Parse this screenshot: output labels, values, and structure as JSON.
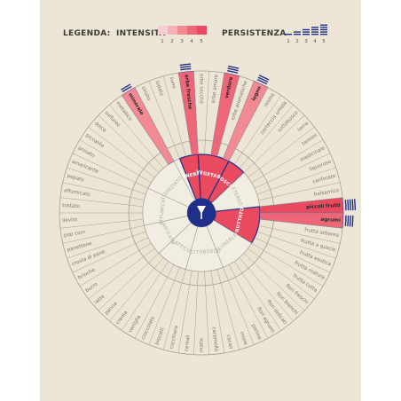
{
  "legend": {
    "title": "LEGENDA:",
    "intensity_label": "INTENSITÀ",
    "persistence_label": "PERSISTENZA",
    "scale": [
      "1",
      "2",
      "3",
      "4",
      "5"
    ]
  },
  "colors": {
    "background": "#ede6d7",
    "navy": "#1f2f8c",
    "pink1": "#f7cfd2",
    "pink2": "#f6b0b6",
    "pink3": "#f38a93",
    "pink4": "#ee6677",
    "pink5": "#e94a5f",
    "line": "#a59e92",
    "text": "#7c766b"
  },
  "categories": [
    {
      "name": "MINERALE",
      "active": true
    },
    {
      "name": "VEGETALE",
      "active": true
    },
    {
      "name": "BOSCO",
      "active": true
    },
    {
      "name": "ETEREO",
      "active": false
    },
    {
      "name": "FRUTTATO",
      "active": true
    },
    {
      "name": "FLOREALE",
      "active": false
    },
    {
      "name": "SOTTOBOSCO",
      "active": false
    },
    {
      "name": "LATTICO",
      "active": false
    },
    {
      "name": "PANIFICATO",
      "active": false
    },
    {
      "name": "AFFUMICATO",
      "active": false
    },
    {
      "name": "SPEZIATO",
      "active": false
    }
  ],
  "descriptors": [
    {
      "name": "iodato",
      "intensity": 0,
      "persistence": 0
    },
    {
      "name": "sumi",
      "intensity": 0,
      "persistence": 0
    },
    {
      "name": "erbe fresche",
      "intensity": 4,
      "persistence": 3
    },
    {
      "name": "erbe secche",
      "intensity": 0,
      "persistence": 0
    },
    {
      "name": "erbe amare",
      "intensity": 0,
      "persistence": 0
    },
    {
      "name": "verdure",
      "intensity": 4,
      "persistence": 3
    },
    {
      "name": "erbe aromatiche",
      "intensity": 0,
      "persistence": 0
    },
    {
      "name": "legno",
      "intensity": 3,
      "persistence": 3
    },
    {
      "name": "resina",
      "intensity": 0,
      "persistence": 0
    },
    {
      "name": "corteccia umida",
      "intensity": 0,
      "persistence": 0
    },
    {
      "name": "sottobosco",
      "intensity": 0,
      "persistence": 0
    },
    {
      "name": "terra",
      "intensity": 0,
      "persistence": 0
    },
    {
      "name": "tannini",
      "intensity": 0,
      "persistence": 0
    },
    {
      "name": "medicinale",
      "intensity": 0,
      "persistence": 0
    },
    {
      "name": "liquoroso",
      "intensity": 0,
      "persistence": 0
    },
    {
      "name": "canforato",
      "intensity": 0,
      "persistence": 0
    },
    {
      "name": "balsamico",
      "intensity": 0,
      "persistence": 0
    },
    {
      "name": "piccoli frutti",
      "intensity": 5,
      "persistence": 5
    },
    {
      "name": "agrumi",
      "intensity": 4,
      "persistence": 4
    },
    {
      "name": "frutta arborea",
      "intensity": 0,
      "persistence": 0
    },
    {
      "name": "frutta a guscio",
      "intensity": 0,
      "persistence": 0
    },
    {
      "name": "frutta esotica",
      "intensity": 0,
      "persistence": 0
    },
    {
      "name": "frutta matura",
      "intensity": 0,
      "persistence": 0
    },
    {
      "name": "frutta cotta",
      "intensity": 0,
      "persistence": 0
    },
    {
      "name": "fiori freschi",
      "intensity": 0,
      "persistence": 0
    },
    {
      "name": "fiori bianchi",
      "intensity": 0,
      "persistence": 0
    },
    {
      "name": "fiori delicati",
      "intensity": 0,
      "persistence": 0
    },
    {
      "name": "fiori agrumi",
      "intensity": 0,
      "persistence": 0
    },
    {
      "name": "polline",
      "intensity": 0,
      "persistence": 0
    },
    {
      "name": "miele",
      "intensity": 0,
      "persistence": 0
    },
    {
      "name": "cacao",
      "intensity": 0,
      "persistence": 0
    },
    {
      "name": "caramello",
      "intensity": 0,
      "persistence": 0
    },
    {
      "name": "malto",
      "intensity": 0,
      "persistence": 0
    },
    {
      "name": "cereali",
      "intensity": 0,
      "persistence": 0
    },
    {
      "name": "cocchiera",
      "intensity": 0,
      "persistence": 0
    },
    {
      "name": "biscotti",
      "intensity": 0,
      "persistence": 0
    },
    {
      "name": "cioccolato",
      "intensity": 0,
      "persistence": 0
    },
    {
      "name": "vaniglia",
      "intensity": 0,
      "persistence": 0
    },
    {
      "name": "crema",
      "intensity": 0,
      "persistence": 0
    },
    {
      "name": "panna",
      "intensity": 0,
      "persistence": 0
    },
    {
      "name": "latte",
      "intensity": 0,
      "persistence": 0
    },
    {
      "name": "burro",
      "intensity": 0,
      "persistence": 0
    },
    {
      "name": "brioche",
      "intensity": 0,
      "persistence": 0
    },
    {
      "name": "crosta di pane",
      "intensity": 0,
      "persistence": 0
    },
    {
      "name": "panettone",
      "intensity": 0,
      "persistence": 0
    },
    {
      "name": "pop corn",
      "intensity": 0,
      "persistence": 0
    },
    {
      "name": "lievito",
      "intensity": 0,
      "persistence": 0
    },
    {
      "name": "tostato",
      "intensity": 0,
      "persistence": 0
    },
    {
      "name": "affumicato",
      "intensity": 0,
      "persistence": 0
    },
    {
      "name": "pepato",
      "intensity": 0,
      "persistence": 0
    },
    {
      "name": "amaricante",
      "intensity": 0,
      "persistence": 0
    },
    {
      "name": "anisato",
      "intensity": 0,
      "persistence": 0
    },
    {
      "name": "piccante",
      "intensity": 0,
      "persistence": 0
    },
    {
      "name": "dolce",
      "intensity": 0,
      "persistence": 0
    },
    {
      "name": "sulfureo",
      "intensity": 0,
      "persistence": 0
    },
    {
      "name": "metallico",
      "intensity": 0,
      "persistence": 0
    },
    {
      "name": "minerale",
      "intensity": 3,
      "persistence": 2
    },
    {
      "name": "salato",
      "intensity": 0,
      "persistence": 0
    }
  ]
}
